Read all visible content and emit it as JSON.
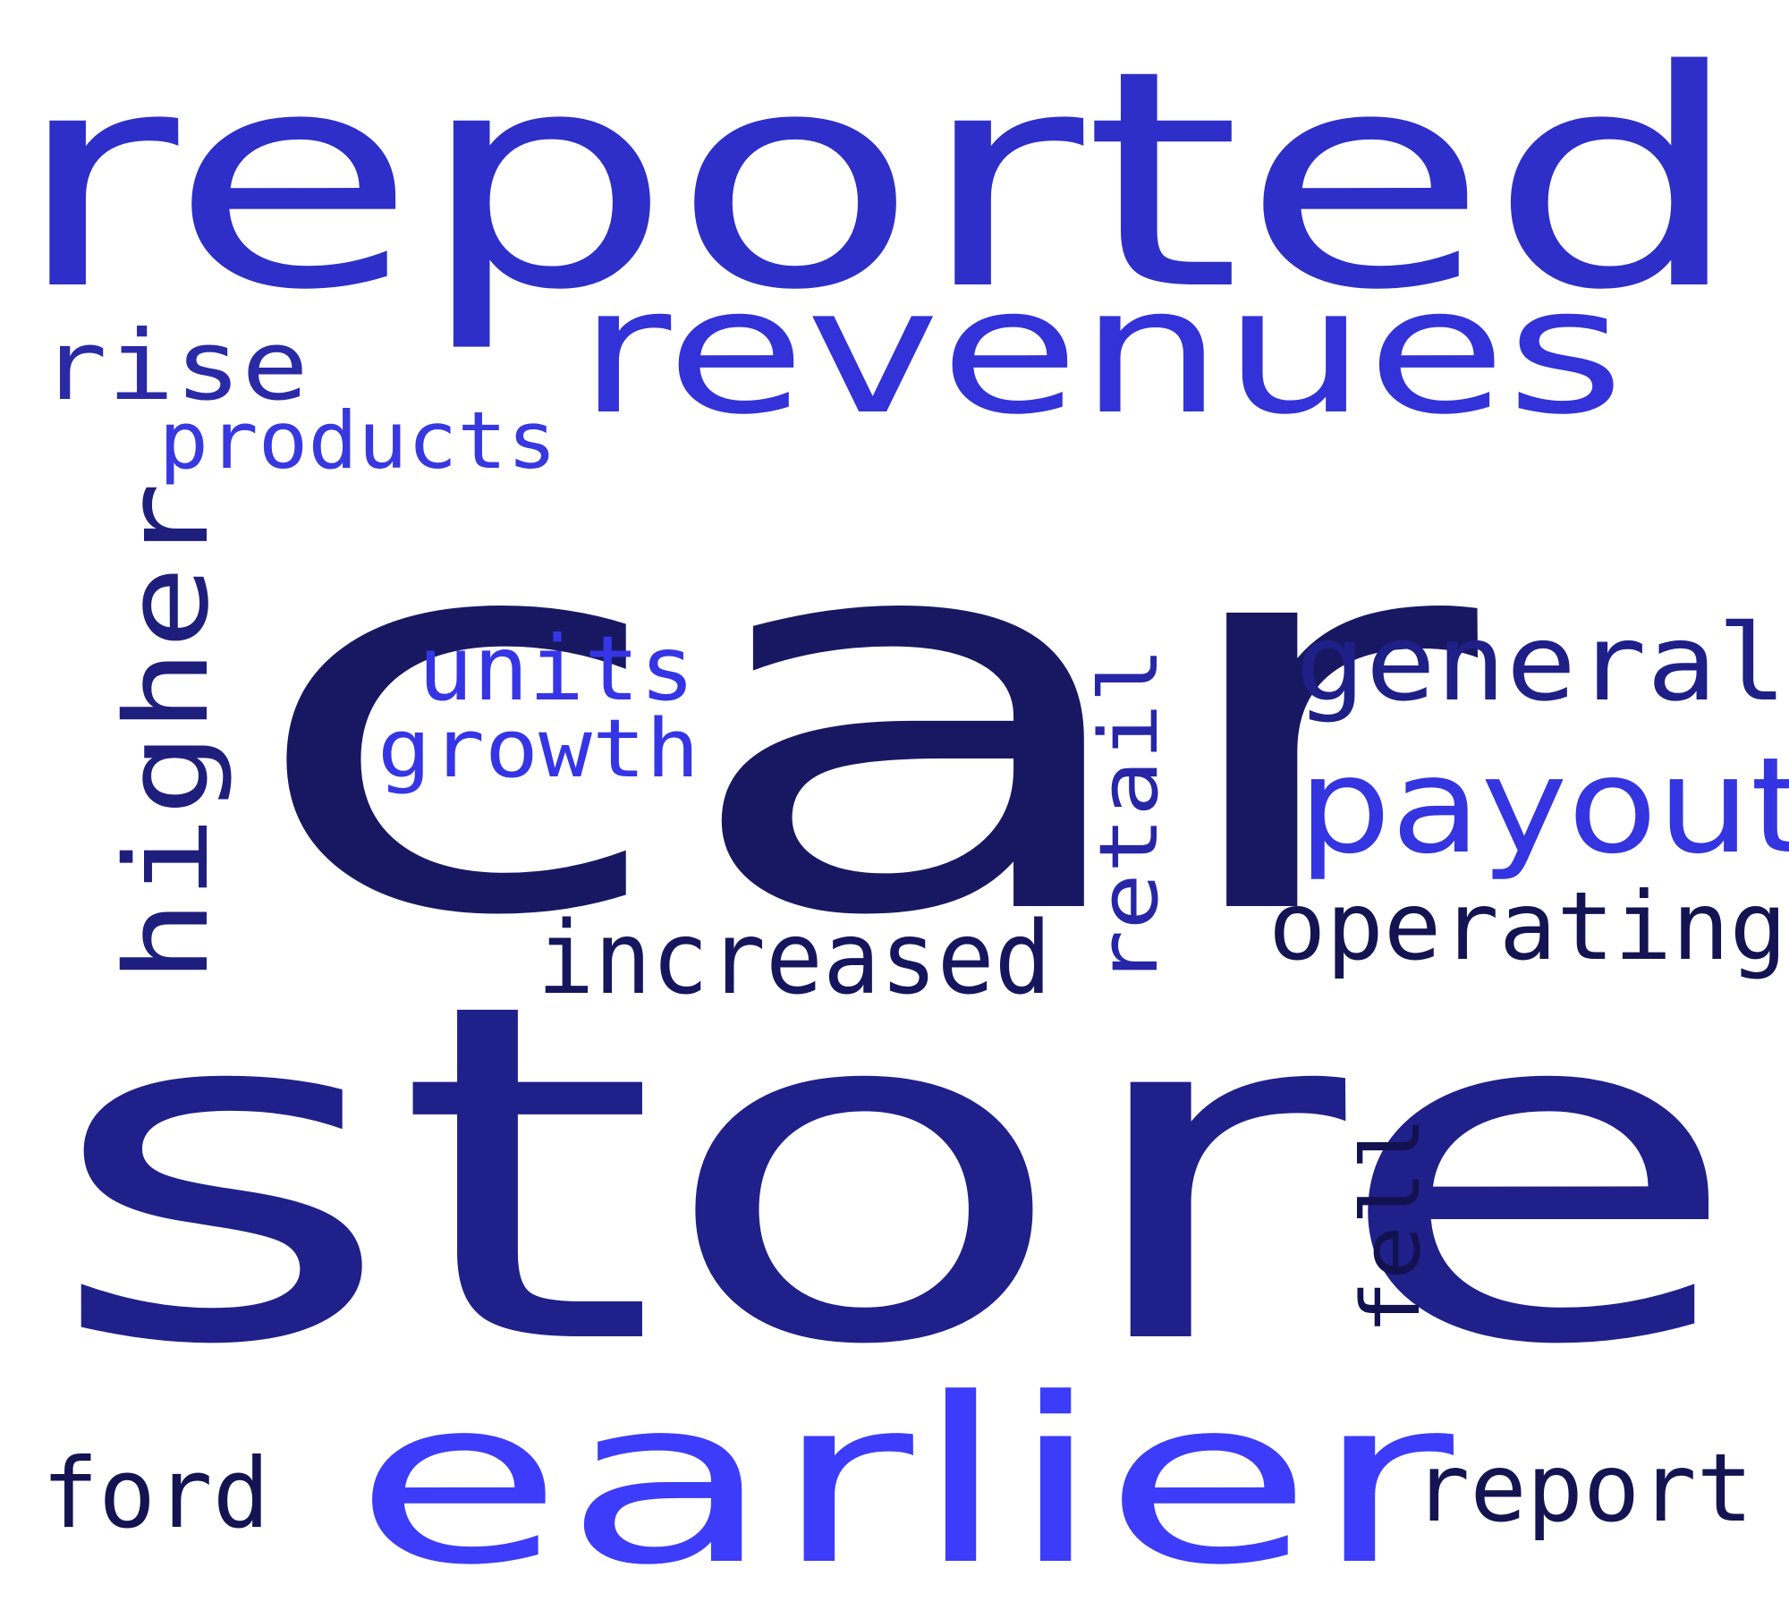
{
  "words": [
    {
      "id": "reported",
      "text": "reported",
      "color": "#2e2ec9"
    },
    {
      "id": "revenues",
      "text": "revenues",
      "color": "#3232d8"
    },
    {
      "id": "rise",
      "text": "rise",
      "color": "#2a2aa6"
    },
    {
      "id": "products",
      "text": "products",
      "color": "#3838e0"
    },
    {
      "id": "car",
      "text": "car",
      "color": "#181862"
    },
    {
      "id": "higher",
      "text": "higher",
      "color": "#1e1e7c"
    },
    {
      "id": "units",
      "text": "units",
      "color": "#3535e6"
    },
    {
      "id": "growth",
      "text": "growth",
      "color": "#3535e6"
    },
    {
      "id": "retail",
      "text": "retail",
      "color": "#2626a6"
    },
    {
      "id": "general",
      "text": "general",
      "color": "#1f1f88"
    },
    {
      "id": "payout",
      "text": "payout",
      "color": "#3434e0"
    },
    {
      "id": "operating",
      "text": "operating",
      "color": "#141452"
    },
    {
      "id": "increased",
      "text": "increased",
      "color": "#16165e"
    },
    {
      "id": "store",
      "text": "store",
      "color": "#20208a"
    },
    {
      "id": "fell",
      "text": "fell",
      "color": "#121250"
    },
    {
      "id": "earlier",
      "text": "earlier",
      "color": "#3c3cfa"
    },
    {
      "id": "ford",
      "text": "ford",
      "color": "#141452"
    },
    {
      "id": "report",
      "text": "report",
      "color": "#141452"
    }
  ]
}
